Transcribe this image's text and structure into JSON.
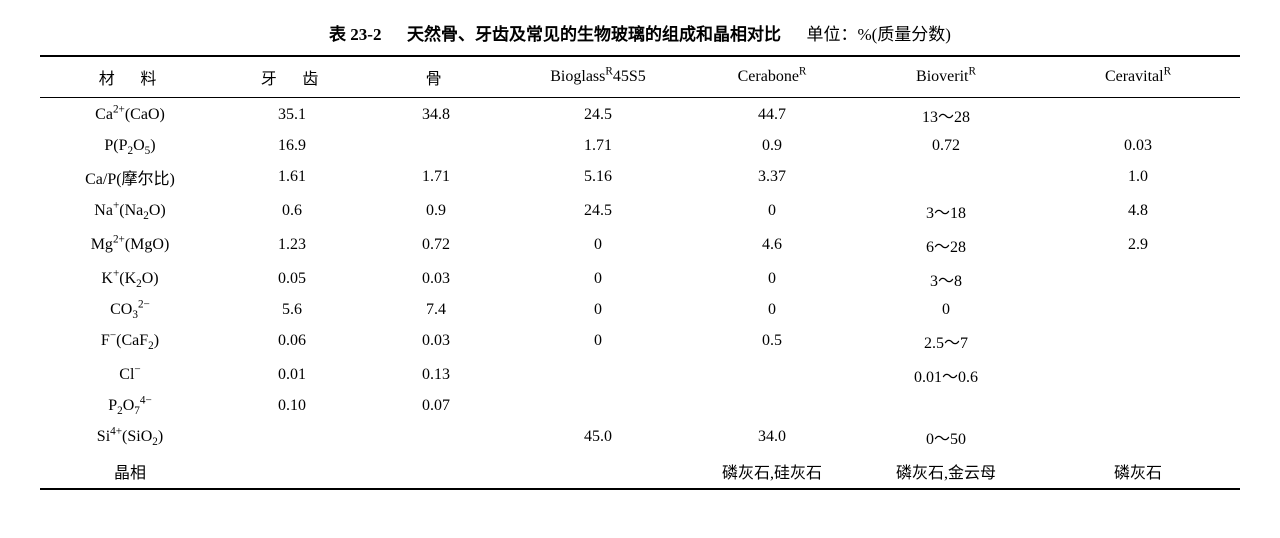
{
  "title_prefix": "表 23-2",
  "title_main": "天然骨、牙齿及常见的生物玻璃的组成和晶相对比",
  "title_unit": "单位：%(质量分数)",
  "columns": [
    "材　料",
    "牙　齿",
    "骨",
    "Bioglass",
    "Cerabone",
    "Bioverit",
    "Ceravital"
  ],
  "col_sup": [
    "",
    "",
    "",
    "R",
    "R",
    "R",
    "R"
  ],
  "col_suffix": [
    "",
    "",
    "",
    "45S5",
    "",
    "",
    ""
  ],
  "rows": [
    {
      "label": "Ca<sup>2+</sup>(CaO)",
      "cells": [
        "35.1",
        "34.8",
        "24.5",
        "44.7",
        "13～28",
        ""
      ]
    },
    {
      "label": "P(P<sub>2</sub>O<sub>5</sub>)",
      "cells": [
        "16.9",
        "",
        "1.71",
        "0.9",
        "0.72",
        "0.03"
      ]
    },
    {
      "label": "Ca/P(摩尔比)",
      "cells": [
        "1.61",
        "1.71",
        "5.16",
        "3.37",
        "",
        "1.0"
      ]
    },
    {
      "label": "Na<sup>+</sup>(Na<sub>2</sub>O)",
      "cells": [
        "0.6",
        "0.9",
        "24.5",
        "0",
        "3～18",
        "4.8"
      ]
    },
    {
      "label": "Mg<sup>2+</sup>(MgO)",
      "cells": [
        "1.23",
        "0.72",
        "0",
        "4.6",
        "6～28",
        "2.9"
      ]
    },
    {
      "label": "K<sup>+</sup>(K<sub>2</sub>O)",
      "cells": [
        "0.05",
        "0.03",
        "0",
        "0",
        "3～8",
        ""
      ]
    },
    {
      "label": "CO<sub>3</sub><sup>2−</sup>",
      "cells": [
        "5.6",
        "7.4",
        "0",
        "0",
        "0",
        ""
      ]
    },
    {
      "label": "F<sup>−</sup>(CaF<sub>2</sub>)",
      "cells": [
        "0.06",
        "0.03",
        "0",
        "0.5",
        "2.5～7",
        ""
      ]
    },
    {
      "label": "Cl<sup>−</sup>",
      "cells": [
        "0.01",
        "0.13",
        "",
        "",
        "0.01～0.6",
        ""
      ]
    },
    {
      "label": "P<sub>2</sub>O<sub>7</sub><sup>4−</sup>",
      "cells": [
        "0.10",
        "0.07",
        "",
        "",
        "",
        ""
      ]
    },
    {
      "label": "Si<sup>4+</sup>(SiO<sub>2</sub>)",
      "cells": [
        "",
        "",
        "45.0",
        "34.0",
        "0～50",
        ""
      ]
    },
    {
      "label": "晶相",
      "cells": [
        "",
        "",
        "",
        "磷灰石,硅灰石",
        "磷灰石,金云母",
        "磷灰石"
      ]
    }
  ],
  "styling": {
    "background_color": "#ffffff",
    "text_color": "#000000",
    "border_color": "#000000",
    "top_border_width": 2,
    "header_border_width": 1.5,
    "bottom_border_width": 2,
    "font_family": "SimSun, serif",
    "font_size_pt": 12,
    "title_font_size_pt": 13,
    "column_widths_pct": [
      15,
      12,
      12,
      15,
      14,
      15,
      17
    ]
  }
}
